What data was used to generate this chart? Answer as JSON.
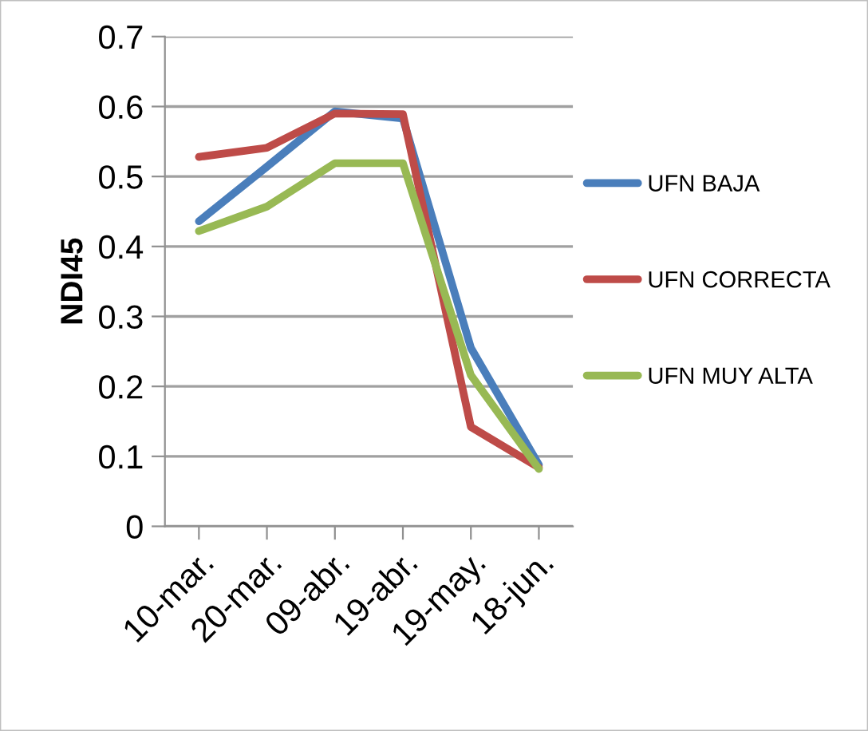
{
  "chart_data": {
    "type": "line",
    "ylabel": "NDI45",
    "categories": [
      "10-mar.",
      "20-mar.",
      "09-abr.",
      "19-abr.",
      "19-may.",
      "18-jun."
    ],
    "series": [
      {
        "name": "UFN BAJA",
        "color": "#4a7ebb",
        "values": [
          0.436,
          0.514,
          0.593,
          0.583,
          0.255,
          0.088
        ]
      },
      {
        "name": "UFN CORRECTA",
        "color": "#be4b48",
        "values": [
          0.528,
          0.541,
          0.59,
          0.589,
          0.142,
          0.084
        ]
      },
      {
        "name": "UFN MUY ALTA",
        "color": "#98b954",
        "values": [
          0.422,
          0.457,
          0.519,
          0.519,
          0.216,
          0.082
        ]
      }
    ],
    "ylim": [
      0,
      0.7
    ],
    "yticks": [
      {
        "value": 0,
        "label": "0"
      },
      0.1,
      0.2,
      0.3,
      0.4,
      0.5,
      0.6,
      0.7
    ],
    "grid": "y",
    "legend": "right",
    "marker": "none",
    "line_style": "solid"
  }
}
